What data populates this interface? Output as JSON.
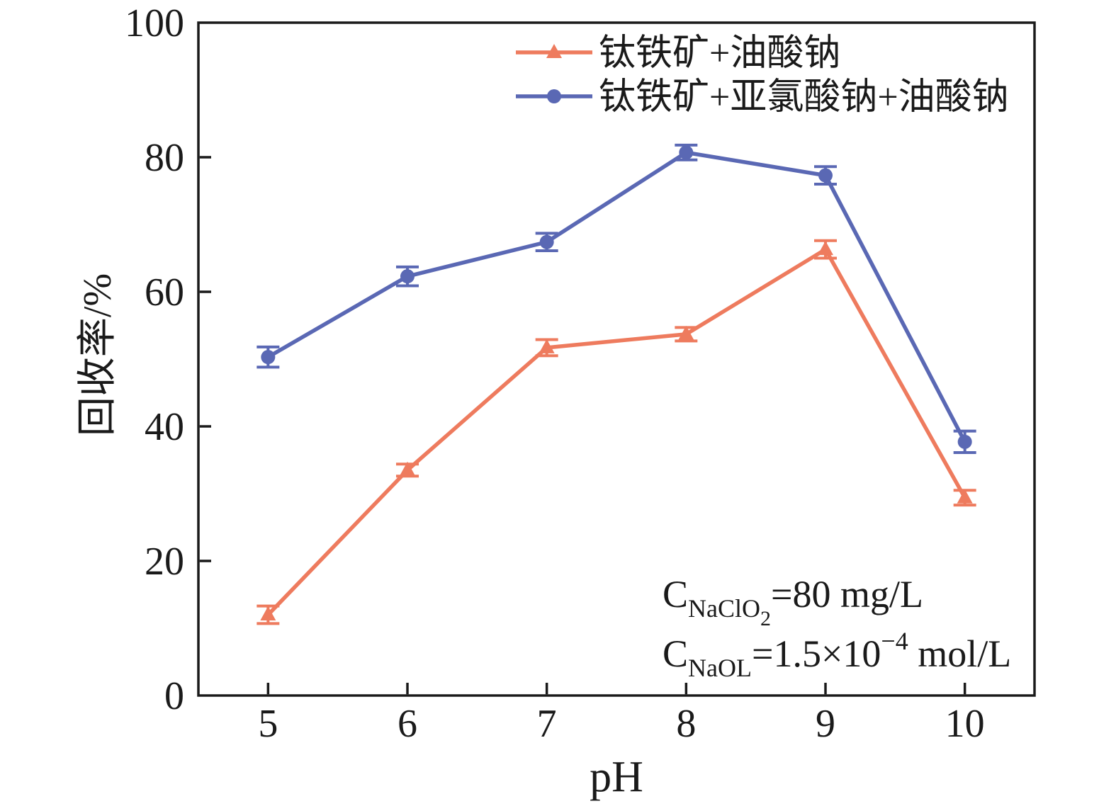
{
  "figure": {
    "background": "#ffffff",
    "ink_color": "#1a1a1a"
  },
  "chart_data": {
    "type": "line",
    "title": "",
    "xlabel": "pH",
    "ylabel": "回收率/%",
    "xlim": [
      4.5,
      10.5
    ],
    "ylim": [
      0,
      100
    ],
    "xticks": [
      5,
      6,
      7,
      8,
      9,
      10
    ],
    "yticks": [
      0,
      20,
      40,
      60,
      80,
      100
    ],
    "grid": false,
    "legend_position": "top-right-inside",
    "x": [
      5,
      6,
      7,
      8,
      9,
      10
    ],
    "series": [
      {
        "name": "钛铁矿+油酸钠",
        "color": "#EE7B5E",
        "marker": "triangle",
        "values": [
          12.0,
          33.5,
          51.7,
          53.7,
          66.3,
          29.4
        ],
        "errors": [
          1.3,
          0.9,
          1.2,
          1.0,
          1.3,
          1.1
        ]
      },
      {
        "name": "钛铁矿+亚氯酸钠+油酸钠",
        "color": "#5A68B4",
        "marker": "circle",
        "values": [
          50.3,
          62.3,
          67.4,
          80.7,
          77.3,
          37.7
        ],
        "errors": [
          1.5,
          1.4,
          1.3,
          1.1,
          1.3,
          1.6
        ]
      }
    ],
    "annotations": [
      {
        "text": "C_NaClO2 = 80 mg/L",
        "segments": [
          {
            "t": "C",
            "role": "base"
          },
          {
            "t": "NaClO",
            "role": "sub"
          },
          {
            "t": "2",
            "role": "subsub"
          },
          {
            "t": "=80 mg/L",
            "role": "base"
          }
        ]
      },
      {
        "text": "C_NaOL = 1.5×10^-4 mol/L",
        "segments": [
          {
            "t": "C",
            "role": "base"
          },
          {
            "t": "NaOL",
            "role": "sub"
          },
          {
            "t": "=1.5×10",
            "role": "base"
          },
          {
            "t": "−4",
            "role": "sup"
          },
          {
            "t": " mol/L",
            "role": "base"
          }
        ]
      }
    ]
  }
}
